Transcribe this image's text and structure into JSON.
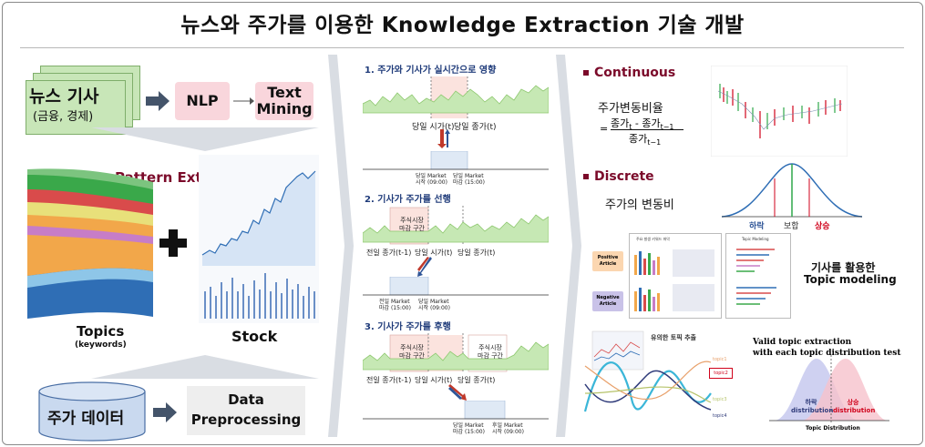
{
  "title": "뉴스와 주가를 이용한 Knowledge Extraction 기술 개발",
  "left": {
    "news_title": "뉴스 기사",
    "news_sub": "(금융, 경제)",
    "nlp": "NLP",
    "text_mining_1": "Text",
    "text_mining_2": "Mining",
    "pattern_extraction": "Pattern Extraction",
    "topics": "Topics",
    "topics_sub": "(keywords)",
    "stock": "Stock",
    "stock_data": "주가 데이터",
    "data_pre_1": "Data",
    "data_pre_2": "Preprocessing"
  },
  "middle": {
    "sec1": "1. 주가와 기사가 실시간으로 영향",
    "sec2": "2. 기사가 주가를 선행",
    "sec3": "3. 기사가 주가를 후행",
    "s1_day_start": "당일 시가(t)",
    "s1_day_end": "당일 종가(t)",
    "s1_m1a": "당일 Market",
    "s1_m1b": "시작 (09:00)",
    "s1_m2a": "당일 Market",
    "s1_m2b": "마감 (15:00)",
    "s2_box_a": "주식시장",
    "s2_box_b": "마감 구간",
    "s2_prev_close": "전일 종가(t-1)",
    "s2_day_open": "당일 시가(t)",
    "s2_day_close": "당일 종가(t)",
    "s2_m1a": "전일 Market",
    "s2_m1b": "마감 (15:00)",
    "s2_m2a": "당일 Market",
    "s2_m2b": "시작 (09:00)",
    "s3_box1_a": "주식시장",
    "s3_box1_b": "마감 구간",
    "s3_box2_a": "주식시장",
    "s3_box2_b": "마감 구간",
    "s3_prev_close": "전일 종가(t-1)",
    "s3_day_open": "당일 시가(t)",
    "s3_day_close": "당일 종가(t)",
    "s3_m1a": "당일 Market",
    "s3_m1b": "마감 (15:00)",
    "s3_m2a": "후일 Market",
    "s3_m2b": "시작 (09:00)"
  },
  "right": {
    "continuous": "Continuous",
    "ratio_label": "주가변동비율",
    "formula_eq": "=",
    "formula_num_a": "종가",
    "formula_num_t": "t",
    "formula_num_minus": " - 종가",
    "formula_num_t1": "t−1",
    "formula_den": "종가",
    "formula_den_t1": "t−1",
    "discrete": "Discrete",
    "discrete_desc": "주가의 변동비",
    "bell_down": "하락",
    "bell_flat": "보합",
    "bell_up": "상승",
    "topic_text_1": "기사를 활용한",
    "topic_text_2": "Topic modeling",
    "flow_pos_a": "Positive",
    "flow_pos_b": "Article",
    "flow_neg_a": "Negative",
    "flow_neg_b": "Article",
    "flow_mid_title": "주요 발생 키워드 파악",
    "flow_right_title": "Topic Modeling",
    "sig_title": "유의한 토픽 추출",
    "sig_topic1": "topic1",
    "sig_topic2": "topic2",
    "sig_topic3": "topic3",
    "sig_topic4": "topic4",
    "valid_1": "Valid topic extraction",
    "valid_2": "with each  topic distribution test",
    "dist_down_a": "하락",
    "dist_down_b": "distribution",
    "dist_up_a": "상승",
    "dist_up_b": "distribution",
    "dist_axis": "Topic Distribution"
  },
  "colors": {
    "frame": "#8a8a8a",
    "news_green": "#c8e6b8",
    "pink": "#f9d6dc",
    "navy": "#1f3b7a",
    "maroon": "#7b0a2a",
    "down_red": "#d0021b",
    "up_green": "#2ea84a"
  }
}
